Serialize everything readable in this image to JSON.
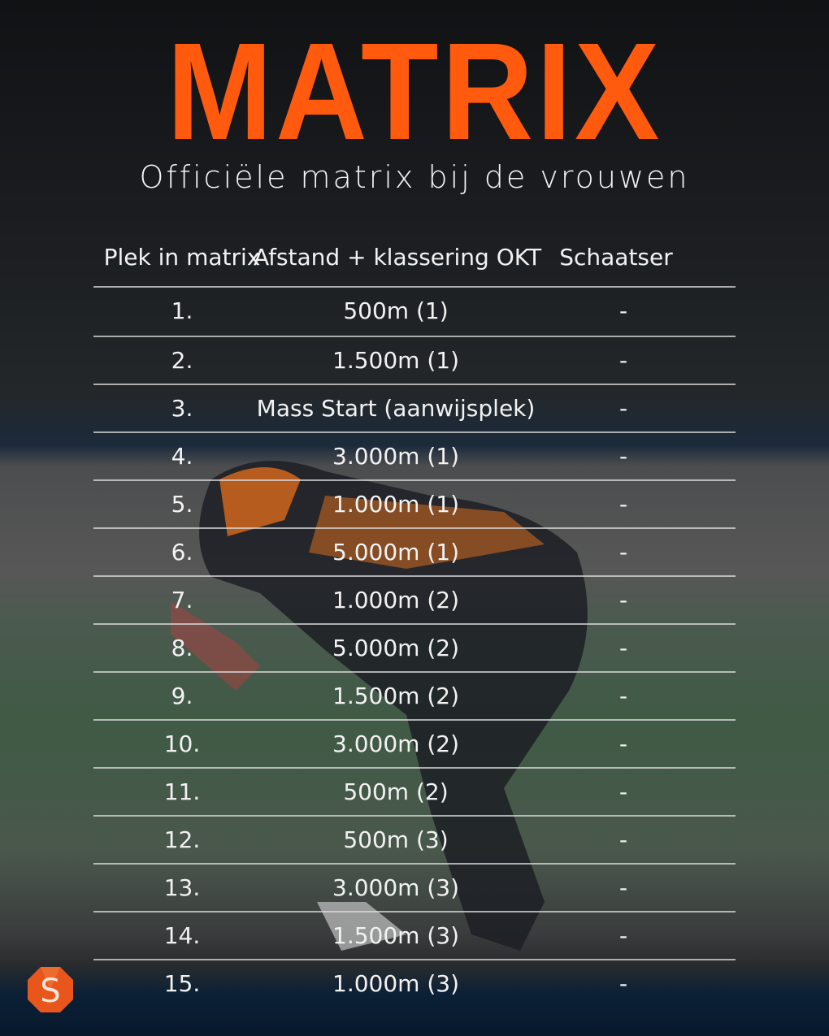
{
  "title": "MATRIX",
  "subtitle": "Officiële matrix bij de vrouwen",
  "columns": [
    "Plek in matrix",
    "Afstand + klassering OKT",
    "Schaatser"
  ],
  "rows": [
    {
      "place": "1.",
      "distance": "500m (1)",
      "skater": "-"
    },
    {
      "place": "2.",
      "distance": "1.500m (1)",
      "skater": "-"
    },
    {
      "place": "3.",
      "distance": "Mass Start (aanwijsplek)",
      "skater": "-"
    },
    {
      "place": "4.",
      "distance": "3.000m (1)",
      "skater": "-"
    },
    {
      "place": "5.",
      "distance": "1.000m (1)",
      "skater": "-"
    },
    {
      "place": "6.",
      "distance": "5.000m (1)",
      "skater": "-"
    },
    {
      "place": "7.",
      "distance": "1.000m (2)",
      "skater": "-"
    },
    {
      "place": "8.",
      "distance": "5.000m (2)",
      "skater": "-"
    },
    {
      "place": "9.",
      "distance": "1.500m (2)",
      "skater": "-"
    },
    {
      "place": "10.",
      "distance": "3.000m (2)",
      "skater": "-"
    },
    {
      "place": "11.",
      "distance": "500m (2)",
      "skater": "-"
    },
    {
      "place": "12.",
      "distance": "500m (3)",
      "skater": "-"
    },
    {
      "place": "13.",
      "distance": "3.000m (3)",
      "skater": "-"
    },
    {
      "place": "14.",
      "distance": "1.500m (3)",
      "skater": "-"
    },
    {
      "place": "15.",
      "distance": "1.000m (3)",
      "skater": "-"
    }
  ],
  "logo": {
    "letter": "S",
    "color": "#e8561c"
  },
  "colors": {
    "title": "#ff5a0e"
  }
}
